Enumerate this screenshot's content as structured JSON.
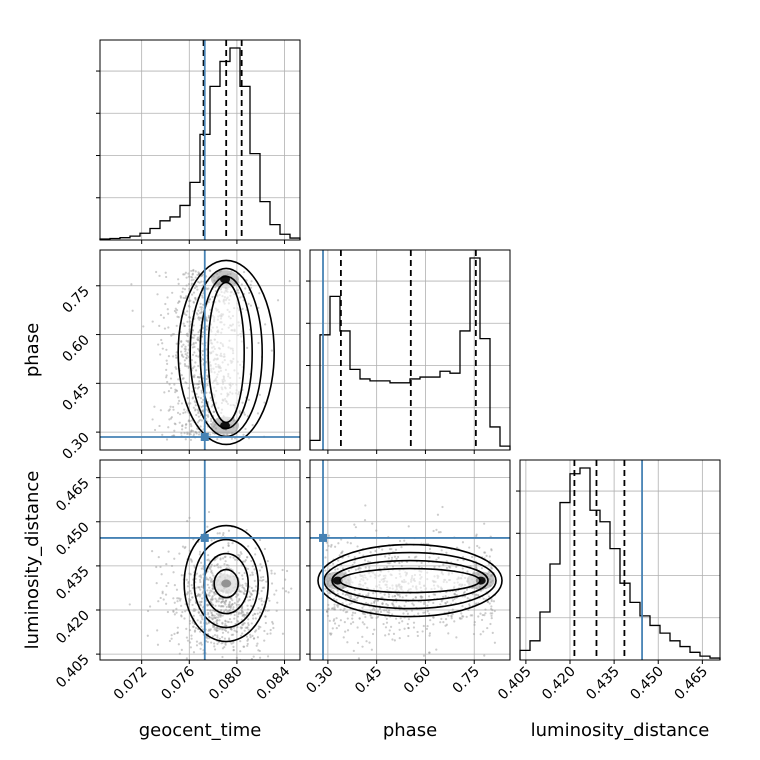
{
  "chart_data": {
    "type": "corner",
    "truth_color": "#4682b4",
    "parameters": [
      {
        "name": "geocent_time",
        "label": "geocent_time",
        "range": [
          0.0685,
          0.0853
        ],
        "ticks": [
          "0.072",
          "0.076",
          "0.080",
          "0.084"
        ],
        "tick_values": [
          0.072,
          0.076,
          0.08,
          0.084
        ],
        "truth": 0.0773,
        "quantiles": [
          0.0772,
          0.0791,
          0.0804
        ],
        "hist": [
          0.005,
          0.008,
          0.012,
          0.02,
          0.035,
          0.06,
          0.1,
          0.12,
          0.18,
          0.3,
          0.55,
          0.8,
          0.93,
          1.0,
          0.8,
          0.45,
          0.2,
          0.08,
          0.03,
          0.01
        ]
      },
      {
        "name": "phase",
        "label": "phase",
        "range": [
          0.245,
          0.86
        ],
        "ticks": [
          "0.30",
          "0.45",
          "0.60",
          "0.75"
        ],
        "tick_values": [
          0.3,
          0.45,
          0.6,
          0.75
        ],
        "truth": 0.285,
        "quantiles": [
          0.34,
          0.555,
          0.755
        ],
        "hist": [
          0.05,
          0.6,
          0.8,
          0.62,
          0.42,
          0.37,
          0.36,
          0.36,
          0.35,
          0.35,
          0.37,
          0.38,
          0.38,
          0.41,
          0.4,
          0.62,
          1.0,
          0.58,
          0.12,
          0.02
        ]
      },
      {
        "name": "luminosity_distance",
        "label": "luminosity_distance",
        "range": [
          0.403,
          0.471
        ],
        "ticks": [
          "0.405",
          "0.420",
          "0.435",
          "0.450",
          "0.465"
        ],
        "tick_values": [
          0.405,
          0.42,
          0.435,
          0.45,
          0.465
        ],
        "truth": 0.4445,
        "quantiles": [
          0.4215,
          0.429,
          0.4385
        ],
        "hist": [
          0.05,
          0.1,
          0.25,
          0.5,
          0.82,
          0.97,
          1.0,
          0.78,
          0.72,
          0.58,
          0.4,
          0.3,
          0.23,
          0.18,
          0.14,
          0.1,
          0.07,
          0.04,
          0.02,
          0.01
        ]
      }
    ],
    "pairs": [
      {
        "x": "geocent_time",
        "y": "phase",
        "modes": [
          [
            0.079,
            0.77
          ],
          [
            0.079,
            0.32
          ]
        ]
      },
      {
        "x": "geocent_time",
        "y": "luminosity_distance",
        "modes": [
          [
            0.0791,
            0.429
          ]
        ]
      },
      {
        "x": "phase",
        "y": "luminosity_distance",
        "modes": [
          [
            0.33,
            0.43
          ],
          [
            0.77,
            0.43
          ]
        ]
      }
    ]
  }
}
